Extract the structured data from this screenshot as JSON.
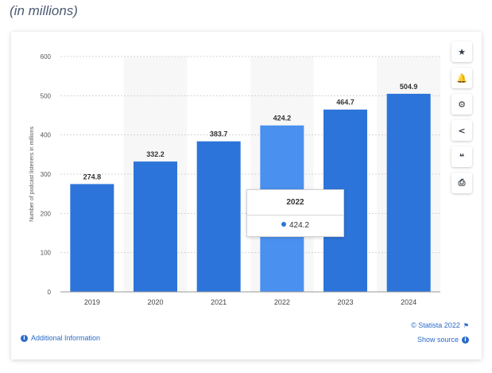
{
  "subtitle": "(in millions)",
  "accent_color": "#2c74d9",
  "highlight_color": "#4a90ef",
  "toolbar": {
    "icons": [
      "star-icon",
      "bell-icon",
      "gear-icon",
      "share-icon",
      "quote-icon",
      "print-icon"
    ],
    "glyphs": [
      "★",
      "🔔",
      "⚙",
      "<",
      "❝",
      "⎙"
    ]
  },
  "tooltip": {
    "year": "2022",
    "value": "424.2"
  },
  "footer": {
    "additional_info": "Additional Information",
    "copyright": "© Statista 2022",
    "show_source": "Show source"
  },
  "chart_data": {
    "type": "bar",
    "ylabel": "Number of podcast listeners in millions",
    "ylim": [
      0,
      600
    ],
    "yticks": [
      0,
      100,
      200,
      300,
      400,
      500,
      600
    ],
    "categories": [
      "2019",
      "2020",
      "2021",
      "2022",
      "2023",
      "2024"
    ],
    "values": [
      274.8,
      332.2,
      383.7,
      424.2,
      464.7,
      504.9
    ],
    "value_labels": [
      "274.8",
      "332.2",
      "383.7",
      "424.2",
      "464.7",
      "504.9"
    ],
    "highlighted_index": 3,
    "grid": true
  }
}
